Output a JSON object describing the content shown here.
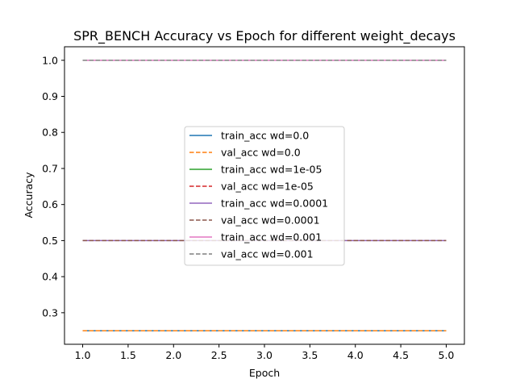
{
  "chart_data": {
    "type": "line",
    "title": "SPR_BENCH Accuracy vs Epoch for different weight_decays",
    "xlabel": "Epoch",
    "ylabel": "Accuracy",
    "xlim": [
      0.8,
      5.2
    ],
    "ylim": [
      0.2125,
      1.0375
    ],
    "xticks": [
      "1.0",
      "1.5",
      "2.0",
      "2.5",
      "3.0",
      "3.5",
      "4.0",
      "4.5",
      "5.0"
    ],
    "yticks": [
      "0.3",
      "0.4",
      "0.5",
      "0.6",
      "0.7",
      "0.8",
      "0.9",
      "1.0"
    ],
    "grid": false,
    "legend_position": "center",
    "x": [
      1,
      2,
      3,
      4,
      5
    ],
    "series": [
      {
        "name": "train_acc wd=0.0",
        "values": [
          0.25,
          0.25,
          0.25,
          0.25,
          0.25
        ],
        "color": "#1f77b4",
        "dash": "solid"
      },
      {
        "name": "val_acc wd=0.0",
        "values": [
          0.25,
          0.25,
          0.25,
          0.25,
          0.25
        ],
        "color": "#ff7f0e",
        "dash": "dashed"
      },
      {
        "name": "train_acc wd=1e-05",
        "values": [
          1.0,
          1.0,
          1.0,
          1.0,
          1.0
        ],
        "color": "#2ca02c",
        "dash": "solid"
      },
      {
        "name": "val_acc wd=1e-05",
        "values": [
          1.0,
          1.0,
          1.0,
          1.0,
          1.0
        ],
        "color": "#d62728",
        "dash": "dashed"
      },
      {
        "name": "train_acc wd=0.0001",
        "values": [
          0.5,
          0.5,
          0.5,
          0.5,
          0.5
        ],
        "color": "#9467bd",
        "dash": "solid"
      },
      {
        "name": "val_acc wd=0.0001",
        "values": [
          0.5,
          0.5,
          0.5,
          0.5,
          0.5
        ],
        "color": "#8c564b",
        "dash": "dashed"
      },
      {
        "name": "train_acc wd=0.001",
        "values": [
          1.0,
          1.0,
          1.0,
          1.0,
          1.0
        ],
        "color": "#e377c2",
        "dash": "solid"
      },
      {
        "name": "val_acc wd=0.001",
        "values": [
          1.0,
          1.0,
          1.0,
          1.0,
          1.0
        ],
        "color": "#7f7f7f",
        "dash": "dashed"
      }
    ]
  }
}
